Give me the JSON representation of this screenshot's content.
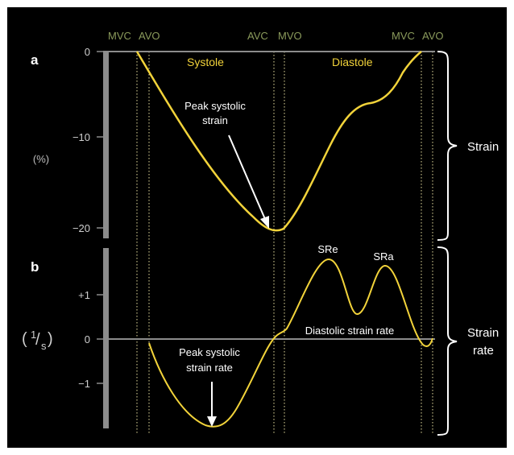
{
  "events_top": [
    "MVC",
    "AVO",
    "AVC",
    "MVO",
    "MVC",
    "AVO"
  ],
  "panel_a": {
    "label": "a",
    "yticks": [
      "0",
      "−10",
      "−20"
    ],
    "unit": "(%)",
    "phases": [
      "Systole",
      "Diastole"
    ],
    "annotation_line1": "Peak systolic",
    "annotation_line2": "strain",
    "side_label": "Strain"
  },
  "panel_b": {
    "label": "b",
    "yticks": [
      "+1",
      "0",
      "−1"
    ],
    "unit_num": "1",
    "unit_slash": "/",
    "unit_den": "s",
    "unit_open": "(",
    "unit_close": ")",
    "peak_labels": [
      "SRe",
      "SRa"
    ],
    "diastolic_label": "Diastolic strain rate",
    "annotation_line1": "Peak systolic",
    "annotation_line2": "strain rate",
    "side_label_line1": "Strain",
    "side_label_line2": "rate"
  },
  "colors": {
    "background": "#000000",
    "curve": "#f2d33a",
    "axis": "#8c8c8c",
    "event_text": "#8a9a5b",
    "text": "#ffffff"
  }
}
